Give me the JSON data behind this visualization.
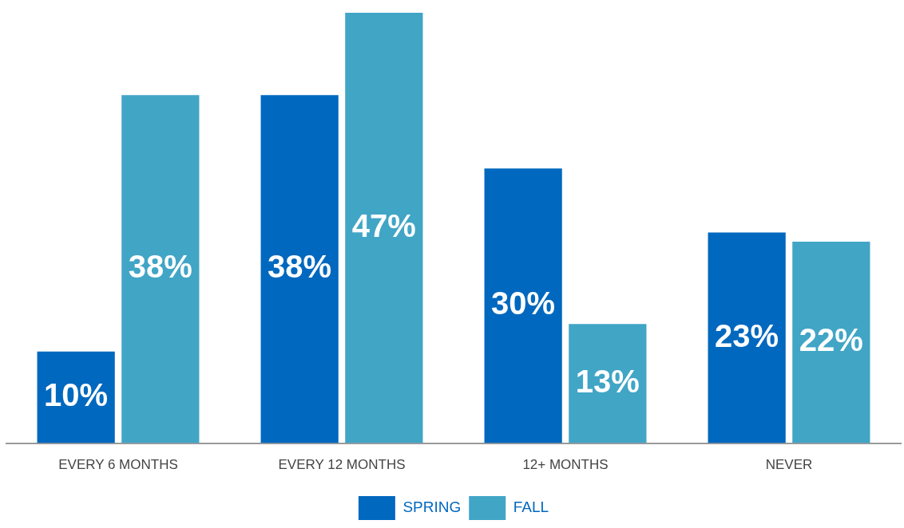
{
  "chart_data": {
    "type": "bar",
    "categories": [
      "EVERY 6 MONTHS",
      "EVERY 12 MONTHS",
      "12+ MONTHS",
      "NEVER"
    ],
    "series": [
      {
        "name": "SPRING",
        "color": "#0068bf",
        "values": [
          10,
          38,
          30,
          23
        ],
        "value_labels": [
          "10%",
          "38%",
          "30%",
          "23%"
        ]
      },
      {
        "name": "FALL",
        "color": "#41a5c6",
        "values": [
          38,
          47,
          13,
          22
        ],
        "value_labels": [
          "38%",
          "47%",
          "13%",
          "22%"
        ]
      }
    ],
    "grid": false,
    "legend": "bottom"
  }
}
